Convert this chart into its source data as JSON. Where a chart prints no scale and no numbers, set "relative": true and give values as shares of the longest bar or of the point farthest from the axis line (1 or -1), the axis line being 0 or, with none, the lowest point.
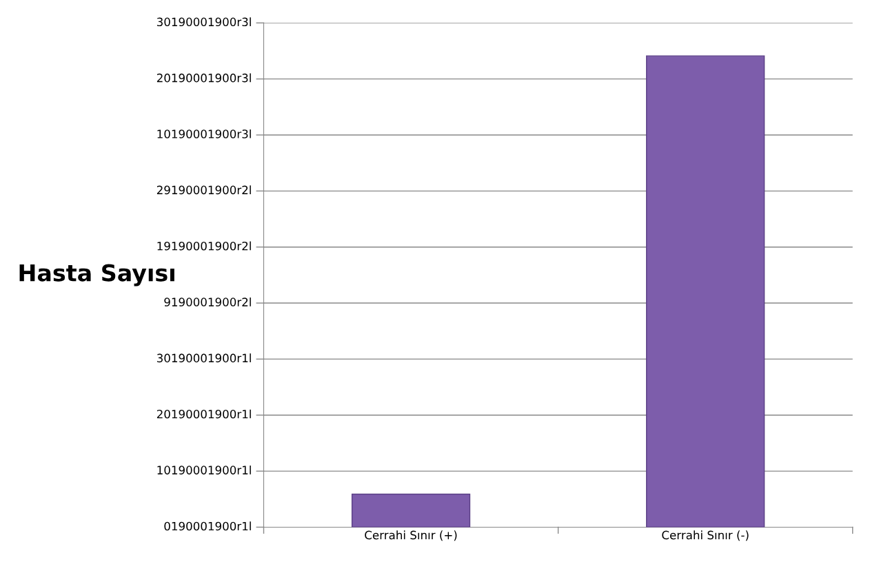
{
  "chart_data": {
    "type": "bar",
    "ylabel": "Hasta Sayısı",
    "relative": true,
    "categories": [
      "Cerrahi Sınır (+)",
      "Cerrahi Sınır (-)"
    ],
    "values": [
      0.07,
      1
    ],
    "color": "#7d5dab",
    "annotations": [
      "0190001900r1l",
      "10190001900r1l",
      "20190001900r1l",
      "30190001900r1l",
      "9190001900r2l",
      "19190001900r2l",
      "29190001900r2l",
      "10190001900r3l",
      "20190001900r3l",
      "30190001900r3l"
    ],
    "grid": "y",
    "legend": false
  }
}
